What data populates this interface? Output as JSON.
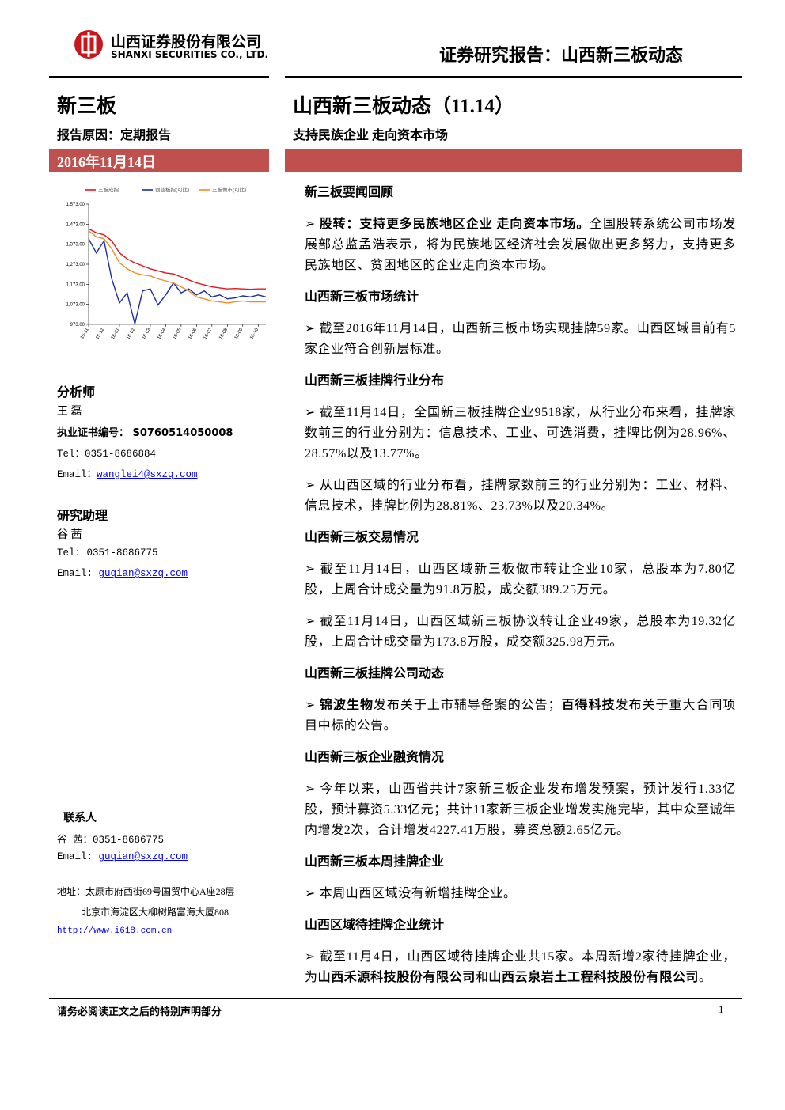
{
  "header": {
    "company_cn": "山西证券股份有限公司",
    "company_en": "SHANXI SECURITIES CO., LTD.",
    "report_type": "证券研究报告：山西新三板动态"
  },
  "sidebar": {
    "category": "新三板",
    "reason": "报告原因：定期报告",
    "date": "2016年11月14日",
    "analyst": {
      "heading": "分析师",
      "name": "王 磊",
      "cert": "执业证书编号： S0760514050008",
      "tel": "Tel：0351-8686884",
      "email_label": "Email：",
      "email": "wanglei4@sxzq.com"
    },
    "assistant": {
      "heading": "研究助理",
      "name": "谷 茜",
      "tel": "Tel: 0351-8686775",
      "email_label": "Email: ",
      "email": "guqian@sxzq.com"
    },
    "contact": {
      "heading": "联系人",
      "tel": "谷 茜：0351-8686775",
      "email_label": "Email: ",
      "email": "guqian@sxzq.com",
      "address1": "地址：太原市府西街69号国贸中心A座28层",
      "address2": "北京市海淀区大柳树路富海大厦808",
      "url": "http://www.i618.com.cn"
    }
  },
  "main": {
    "title": "山西新三板动态（11.14）",
    "subtitle": "支持民族企业 走向资本市场",
    "sections": [
      {
        "heading": "新三板要闻回顾",
        "paragraphs": [
          [
            {
              "text": "股转：支持更多民族地区企业 走向资本市场。",
              "bold": true
            },
            {
              "text": "全国股转系统公司市场发展部总监孟浩表示，将为民族地区经济社会发展做出更多努力，支持更多民族地区、贫困地区的企业走向资本市场。"
            }
          ]
        ]
      },
      {
        "heading": "山西新三板市场统计",
        "paragraphs": [
          [
            {
              "text": "截至2016年11月14日，山西新三板市场实现挂牌59家。山西区域目前有5家企业符合创新层标准。"
            }
          ]
        ]
      },
      {
        "heading": "山西新三板挂牌行业分布",
        "paragraphs": [
          [
            {
              "text": "截至11月14日，全国新三板挂牌企业9518家，从行业分布来看，挂牌家数前三的行业分别为：信息技术、工业、可选消费，挂牌比例为28.96%、28.57%以及13.77%。"
            }
          ],
          [
            {
              "text": "从山西区域的行业分布看，挂牌家数前三的行业分别为：工业、材料、信息技术，挂牌比例为28.81%、23.73%以及20.34%。"
            }
          ]
        ]
      },
      {
        "heading": "山西新三板交易情况",
        "paragraphs": [
          [
            {
              "text": "截至11月14日，山西区域新三板做市转让企业10家，总股本为7.80亿股，上周合计成交量为91.8万股，成交额389.25万元。"
            }
          ],
          [
            {
              "text": "截至11月14日，山西区域新三板协议转让企业49家，总股本为19.32亿股，上周合计成交量为173.8万股，成交额325.98万元。"
            }
          ]
        ]
      },
      {
        "heading": "山西新三板挂牌公司动态",
        "paragraphs": [
          [
            {
              "text": "锦波生物",
              "bold": true
            },
            {
              "text": "发布关于上市辅导备案的公告；"
            },
            {
              "text": "百得科技",
              "bold": true
            },
            {
              "text": "发布关于重大合同项目中标的公告。"
            }
          ]
        ]
      },
      {
        "heading": "山西新三板企业融资情况",
        "paragraphs": [
          [
            {
              "text": "今年以来，山西省共计7家新三板企业发布增发预案，预计发行1.33亿股，预计募资5.33亿元；共计11家新三板企业增发实施完毕，其中众至诚年内增发2次，合计增发4227.41万股，募资总额2.65亿元。"
            }
          ]
        ]
      },
      {
        "heading": "山西新三板本周挂牌企业",
        "paragraphs": [
          [
            {
              "text": "本周山西区域没有新增挂牌企业。"
            }
          ]
        ]
      },
      {
        "heading": "山西区域待挂牌企业统计",
        "paragraphs": [
          [
            {
              "text": "截至11月4日，山西区域待挂牌企业共15家。本周新增2家待挂牌企业，为"
            },
            {
              "text": "山西禾源科技股份有限公司",
              "bold": true
            },
            {
              "text": "和"
            },
            {
              "text": "山西云泉岩土工程科技股份有限公司",
              "bold": true
            },
            {
              "text": "。"
            }
          ]
        ]
      }
    ]
  },
  "footer": {
    "disclaimer": "请务必阅读正文之后的特别声明部分",
    "page": "1"
  },
  "chart_data": {
    "type": "line",
    "categories": [
      "15-11",
      null,
      "15-12",
      null,
      "16-01",
      null,
      "16-02",
      null,
      "16-03",
      null,
      "16-04",
      null,
      "16-05",
      null,
      "16-06",
      null,
      "16-07",
      null,
      "16-08",
      null,
      "16-09",
      null,
      "16-10",
      null
    ],
    "series": [
      {
        "name": "三板成指",
        "color": "#e8141c",
        "values": [
          1450,
          1430,
          1420,
          1390,
          1330,
          1300,
          1280,
          1265,
          1250,
          1240,
          1230,
          1225,
          1210,
          1195,
          1180,
          1170,
          1160,
          1155,
          1150,
          1152,
          1150,
          1148,
          1150,
          1150
        ]
      },
      {
        "name": "创业板指(可比)",
        "color": "#1a2ea8",
        "values": [
          1400,
          1330,
          1390,
          1200,
          1080,
          1130,
          975,
          1140,
          1150,
          1070,
          1120,
          1180,
          1130,
          1150,
          1120,
          1140,
          1110,
          1120,
          1100,
          1105,
          1115,
          1110,
          1120,
          1110
        ]
      },
      {
        "name": "三板做市(可比)",
        "color": "#f28c1e",
        "values": [
          1440,
          1410,
          1400,
          1350,
          1280,
          1250,
          1230,
          1220,
          1215,
          1200,
          1190,
          1180,
          1160,
          1140,
          1110,
          1100,
          1090,
          1085,
          1080,
          1085,
          1090,
          1085,
          1085,
          1085
        ]
      }
    ],
    "ylim": [
      973,
      1573
    ],
    "yticks": [
      {
        "value": 973,
        "label": "973.00"
      },
      {
        "value": 1073,
        "label": "1,073.00"
      },
      {
        "value": 1173,
        "label": "1,173.00"
      },
      {
        "value": 1273,
        "label": "1,273.00"
      },
      {
        "value": 1373,
        "label": "1,373.00"
      },
      {
        "value": 1473,
        "label": "1,473.00"
      },
      {
        "value": 1573,
        "label": "1,573.00"
      }
    ],
    "legend": "top"
  }
}
